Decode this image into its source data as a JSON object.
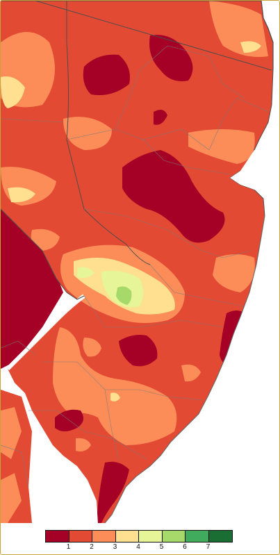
{
  "legend": {
    "colors": [
      "#a50026",
      "#e34a33",
      "#fc8d59",
      "#fee090",
      "#e6f598",
      "#a6d96a",
      "#41ab5d",
      "#1a6e33"
    ],
    "labels": [
      "1",
      "2",
      "3",
      "4",
      "5",
      "6",
      "7"
    ]
  },
  "map_colors": {
    "water": "#ffffff",
    "outside_land": "#e8e8e8",
    "county_line": "#7a7a7a",
    "state_line": "#4d4d4d"
  }
}
